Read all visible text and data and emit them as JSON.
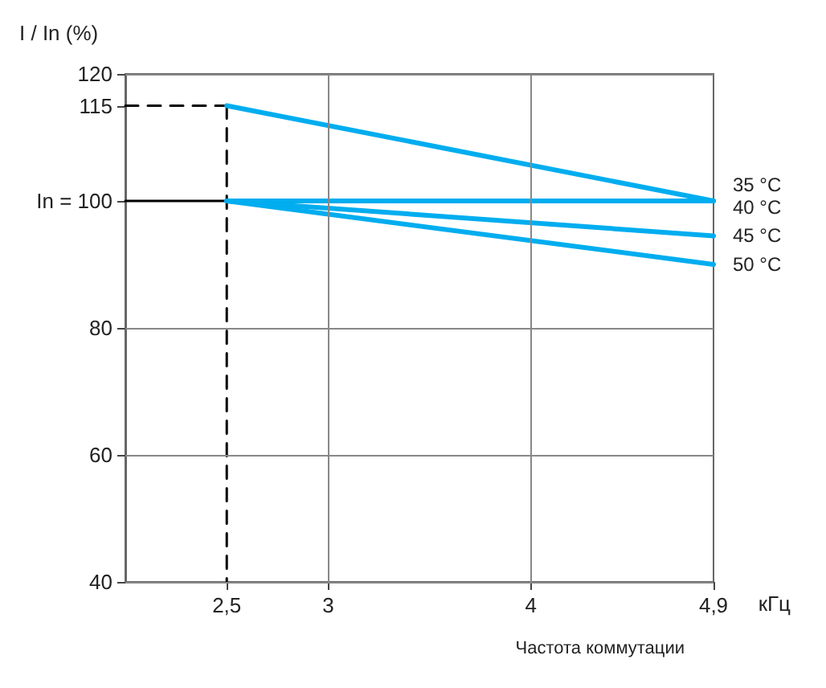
{
  "chart_data": {
    "type": "line",
    "ylabel": "I / In (%)",
    "xlabel": "Частота коммутации",
    "annotations": [
      "кГц"
    ],
    "xlim": [
      2,
      4.9
    ],
    "xticks": [
      {
        "value": 2.5,
        "label": "2,5"
      },
      3,
      4,
      {
        "value": 4.9,
        "label": "4,9"
      }
    ],
    "ylim": [
      40,
      120
    ],
    "yticks": [
      40,
      60,
      80,
      {
        "value": 100,
        "label": "In = 100"
      },
      {
        "value": 115,
        "label": "115"
      },
      120
    ],
    "grid": true,
    "legend": false,
    "marker": "none",
    "line_style": "solid",
    "series": [
      {
        "name": "35 °C",
        "color": "#00adef",
        "x": [
          2.5,
          4.9
        ],
        "values": [
          115,
          100
        ]
      },
      {
        "name": "40 °C",
        "color": "#00adef",
        "x": [
          2.5,
          4.9
        ],
        "values": [
          100,
          100
        ]
      },
      {
        "name": "45 °C",
        "color": "#00adef",
        "x": [
          2.5,
          4.9
        ],
        "values": [
          100,
          94.5
        ]
      },
      {
        "name": "50 °C",
        "color": "#00adef",
        "x": [
          2.5,
          4.9
        ],
        "values": [
          100,
          90
        ]
      },
      {
        "color": "#000000",
        "x": [
          2,
          2.5
        ],
        "values": [
          115,
          115
        ],
        "line_style": "dashed"
      },
      {
        "color": "#000000",
        "x": [
          2.5,
          2.5
        ],
        "values": [
          115,
          40
        ],
        "line_style": "dashed"
      },
      {
        "color": "#000000",
        "x": [
          2,
          2.5
        ],
        "values": [
          100,
          100
        ],
        "line_style": "solid"
      }
    ]
  }
}
